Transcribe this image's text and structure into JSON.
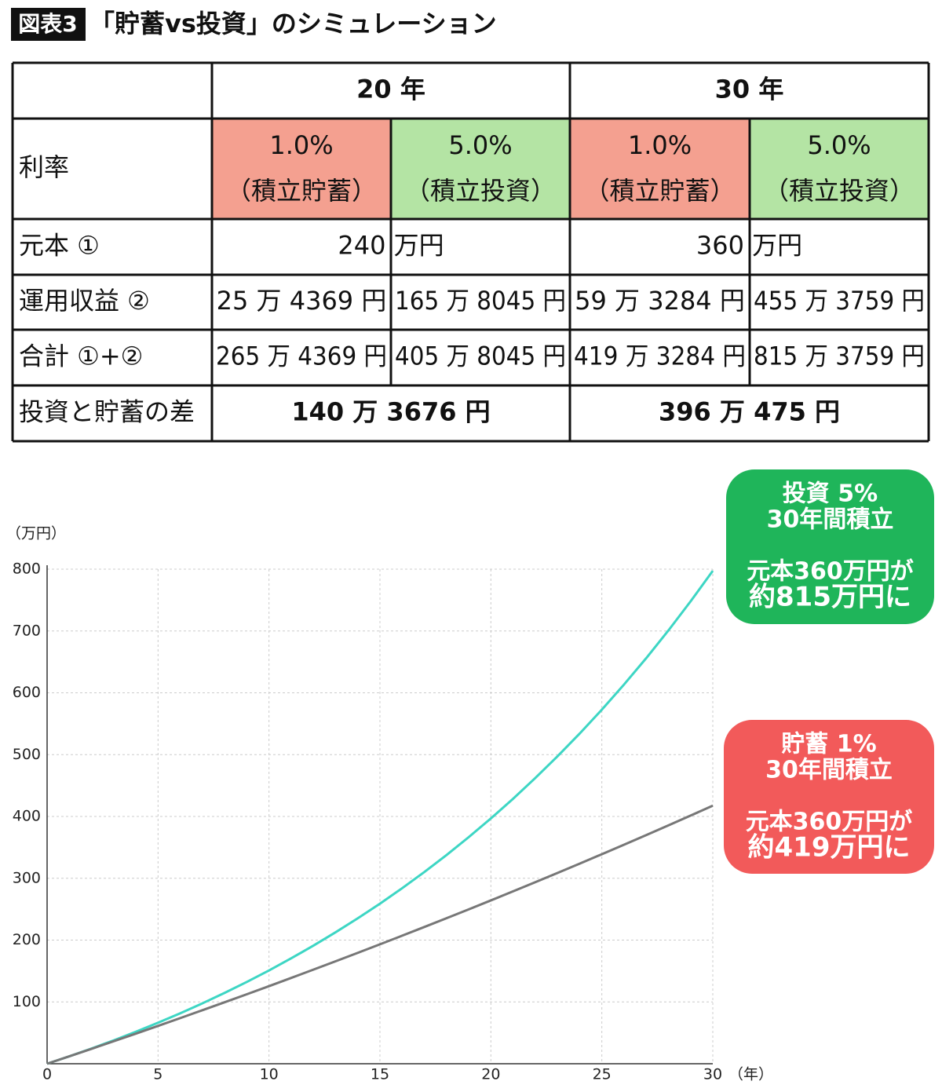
{
  "header": {
    "badge": "図表3",
    "title": "「貯蓄vs投資」のシミュレーション"
  },
  "table": {
    "periods": [
      "20 年",
      "30 年"
    ],
    "rate_label": "利率",
    "rates": [
      {
        "rate": "1.0%",
        "kind": "（積立貯蓄）",
        "color": "#f4a090"
      },
      {
        "rate": "5.0%",
        "kind": "（積立投資）",
        "color": "#b4e4a4"
      },
      {
        "rate": "1.0%",
        "kind": "（積立貯蓄）",
        "color": "#f4a090"
      },
      {
        "rate": "5.0%",
        "kind": "（積立投資）",
        "color": "#b4e4a4"
      }
    ],
    "rows": [
      {
        "label": "元本 ①",
        "cells": [
          "240 万円",
          "360 万円"
        ]
      },
      {
        "label": "運用収益 ②",
        "cells": [
          "25 万 4369 円",
          "165 万 8045 円",
          "59 万 3284 円",
          "455 万 3759 円"
        ]
      },
      {
        "label": "合計 ①+②",
        "cells": [
          "265 万 4369 円",
          "405 万 8045 円",
          "419 万 3284 円",
          "815 万 3759 円"
        ]
      },
      {
        "label": "投資と貯蓄の差",
        "cells": [
          "140 万 3676 円",
          "396 万 475 円"
        ],
        "bold": true
      }
    ]
  },
  "chart_data": {
    "type": "line",
    "ylabel": "（万円）",
    "xlabel": "（年）",
    "x": [
      0,
      1,
      2,
      3,
      4,
      5,
      6,
      7,
      8,
      9,
      10,
      11,
      12,
      13,
      14,
      15,
      16,
      17,
      18,
      19,
      20,
      21,
      22,
      23,
      24,
      25,
      26,
      27,
      28,
      29,
      30
    ],
    "series": [
      {
        "color": "#3dd6c4",
        "values": [
          0,
          12,
          24.6,
          37.8,
          51.7,
          66.3,
          81.6,
          97.7,
          114.6,
          132.3,
          150.9,
          170.5,
          191,
          212.6,
          235.2,
          258.9,
          283.9,
          310.1,
          337.6,
          366.5,
          396.8,
          428.6,
          462.1,
          497.2,
          534,
          572.7,
          613.4,
          656,
          700.8,
          747.9,
          797.3
        ]
      },
      {
        "color": "#777777",
        "values": [
          0,
          12,
          24.1,
          36.4,
          48.7,
          61.2,
          73.8,
          86.6,
          99.4,
          112.4,
          125.5,
          138.8,
          152.2,
          165.7,
          179.4,
          193.2,
          207.1,
          221.2,
          235.4,
          249.7,
          264.2,
          278.9,
          293.7,
          308.6,
          323.7,
          338.9,
          354.3,
          369.9,
          385.5,
          401.4,
          417.4
        ]
      }
    ],
    "xlim": [
      0,
      30
    ],
    "ylim": [
      0,
      800
    ],
    "xticks": [
      0,
      5,
      10,
      15,
      20,
      25,
      30
    ],
    "yticks": [
      100,
      200,
      300,
      400,
      500,
      600,
      700,
      800
    ],
    "grid": true,
    "annotations": [
      {
        "lines": [
          "投資 5%",
          "30年間積立",
          "",
          "元本360万円が",
          "約815万円に"
        ],
        "color": "#1fb55a"
      },
      {
        "lines": [
          "貯蓄 1%",
          "30年間積立",
          "",
          "元本360万円が",
          "約419万円に"
        ],
        "color": "#f25a5a"
      }
    ]
  }
}
